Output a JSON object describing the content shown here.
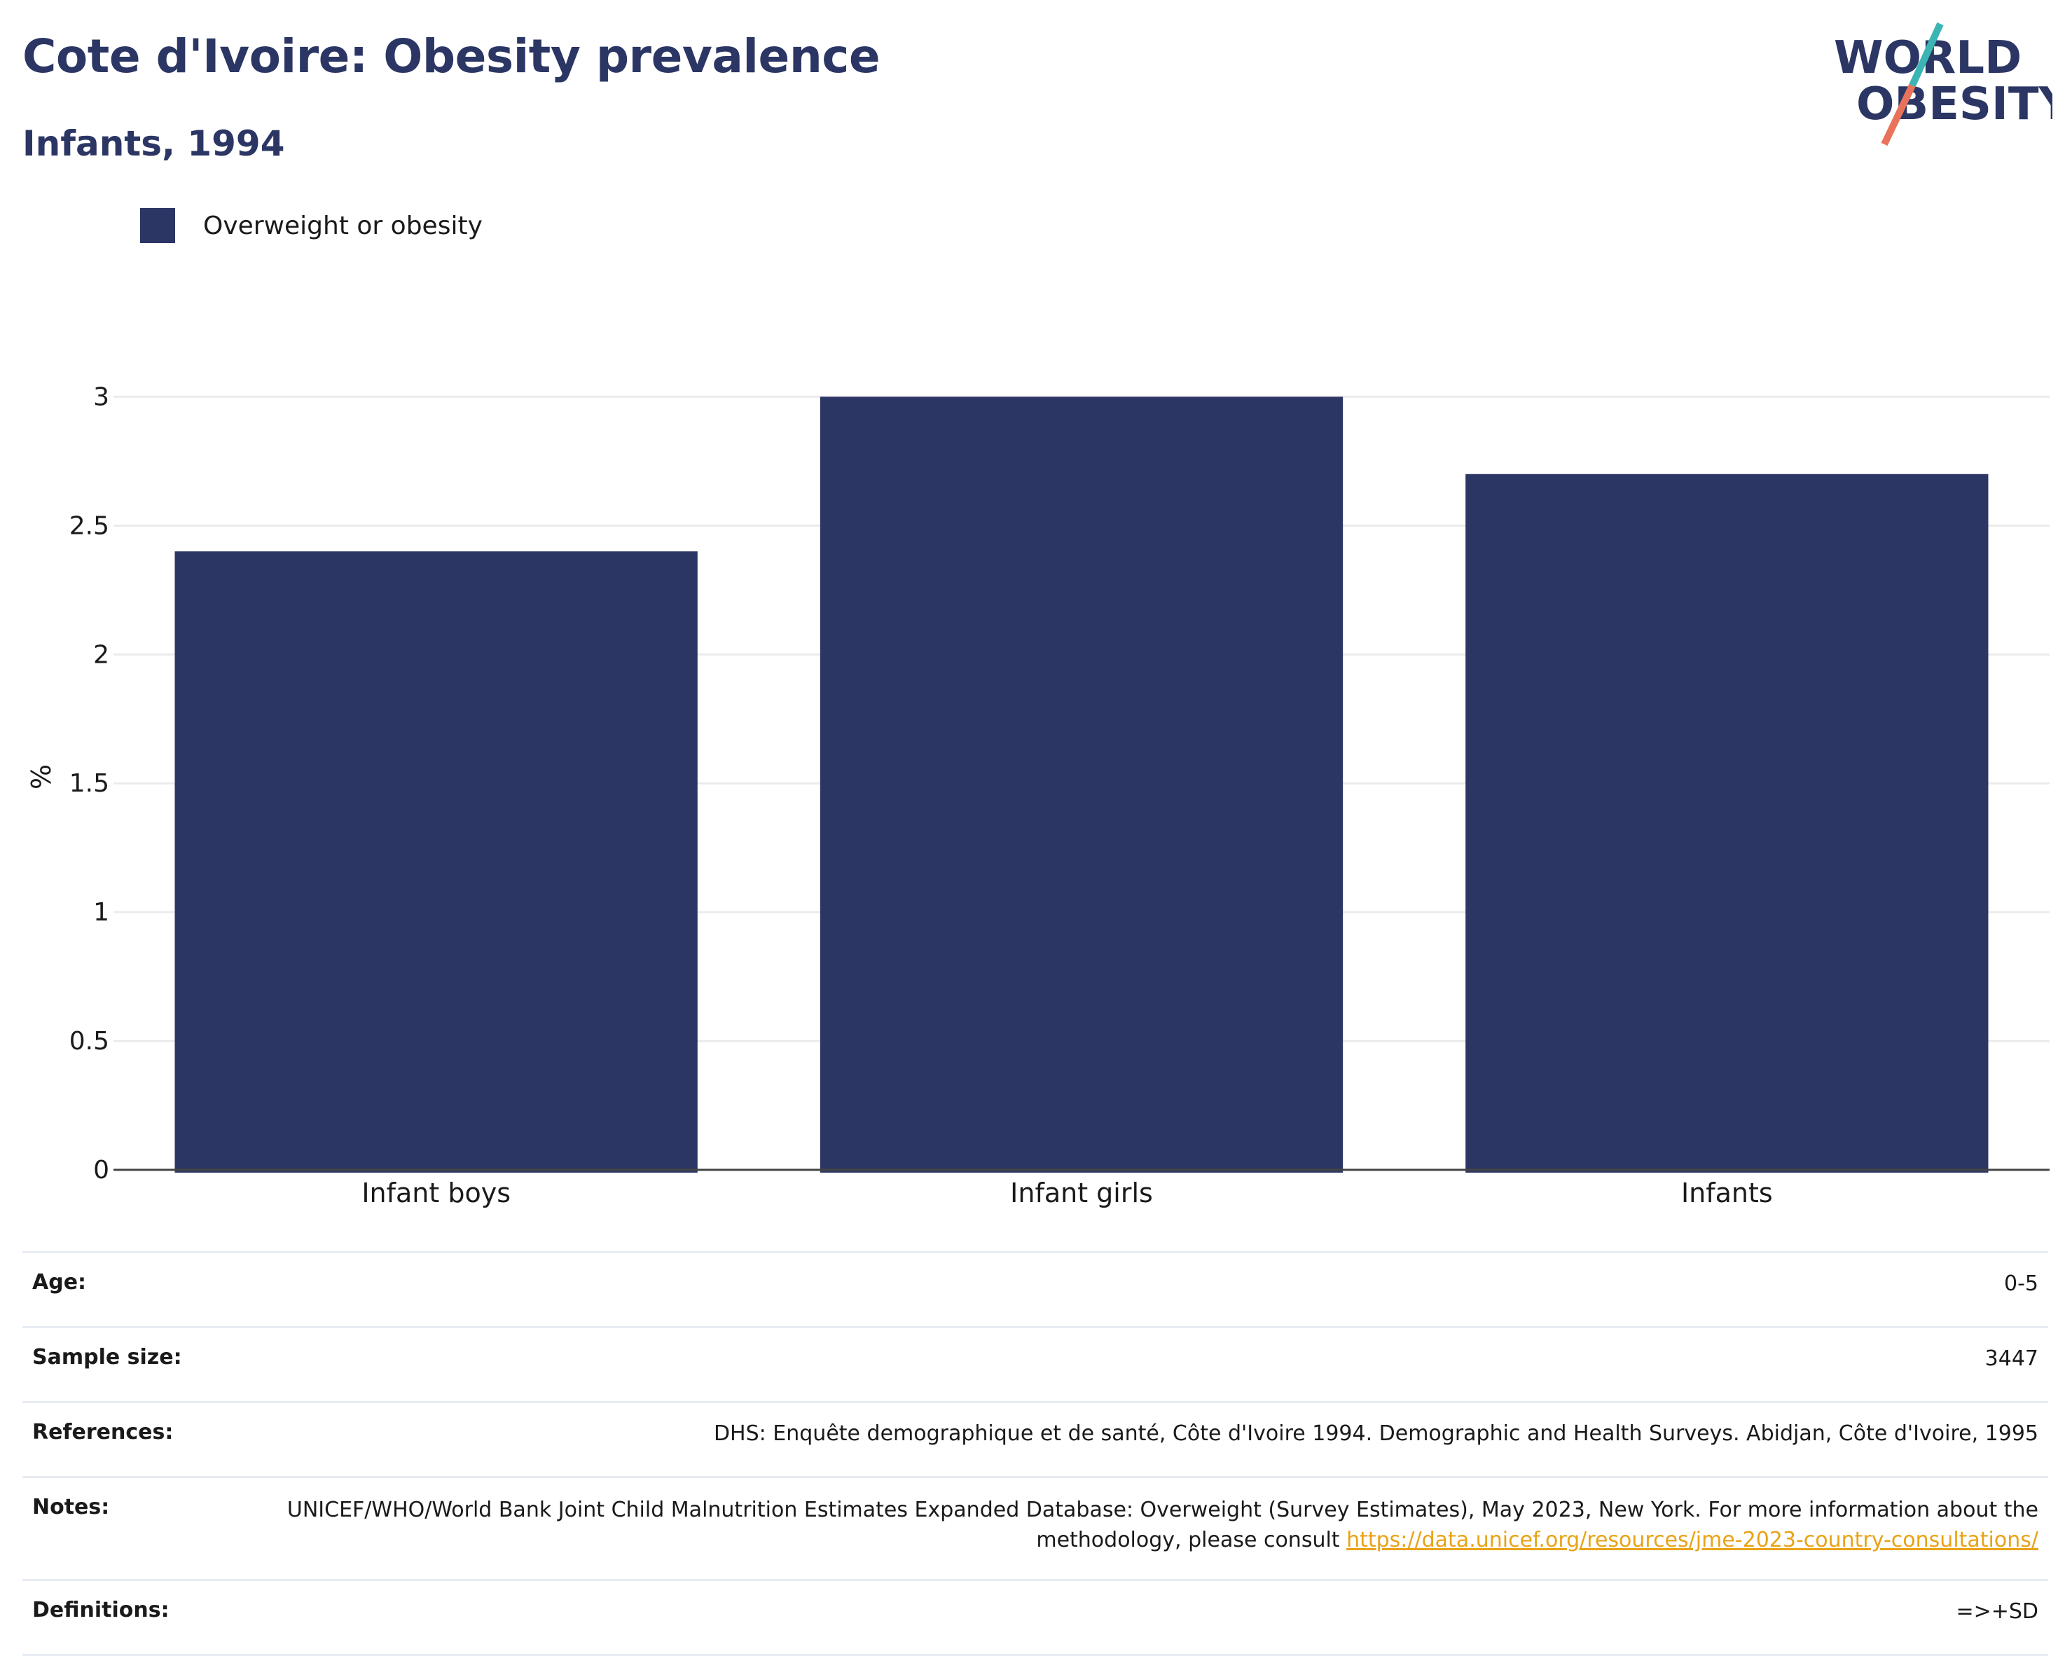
{
  "header": {
    "title": "Cote d'Ivoire: Obesity prevalence",
    "subtitle": "Infants, 1994"
  },
  "logo": {
    "line1": "WORLD",
    "line2": "OBESITY",
    "colors": {
      "text": "#2b3664",
      "slash_top": "#3bb5b4",
      "slash_bottom": "#e8735a"
    }
  },
  "chart_data": {
    "type": "bar",
    "categories": [
      "Infant boys",
      "Infant girls",
      "Infants"
    ],
    "series": [
      {
        "name": "Overweight or obesity",
        "values": [
          2.4,
          3.0,
          2.7
        ],
        "color": "#2b3664"
      }
    ],
    "ylabel": "%",
    "ylim": [
      0,
      3.05
    ],
    "yticks": [
      "0",
      "0.5",
      "1",
      "1.5",
      "2",
      "2.5",
      "3"
    ],
    "grid": true,
    "legend_placement": "top-left"
  },
  "info": {
    "rows": [
      {
        "key": "Age:",
        "value": "0-5"
      },
      {
        "key": "Sample size:",
        "value": "3447"
      },
      {
        "key": "References:",
        "value": "DHS: Enquête demographique et de santé, Côte d'Ivoire 1994. Demographic and Health Surveys. Abidjan, Côte d'Ivoire, 1995"
      },
      {
        "key": "Notes:",
        "value": "UNICEF/WHO/World Bank Joint Child Malnutrition Estimates Expanded Database: Overweight (Survey Estimates), May 2023, New York. For more information about the methodology, please consult ",
        "link": "https://data.unicef.org/resources/jme-2023-country-consultations/"
      },
      {
        "key": "Definitions:",
        "value": "=>+SD"
      }
    ]
  }
}
